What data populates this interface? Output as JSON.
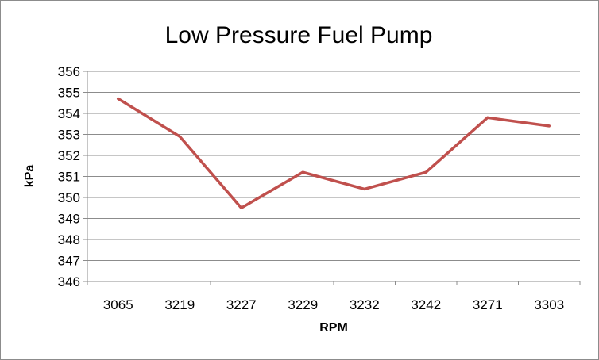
{
  "chart_data": {
    "type": "line",
    "title": "Low Pressure Fuel Pump",
    "xlabel": "RPM",
    "ylabel": "kPa",
    "categories": [
      "3065",
      "3219",
      "3227",
      "3229",
      "3232",
      "3242",
      "3271",
      "3303"
    ],
    "series": [
      {
        "values": [
          354.7,
          352.9,
          349.5,
          351.2,
          350.4,
          351.2,
          353.8,
          353.4
        ],
        "color": "#c0504d"
      }
    ],
    "ylim": [
      346,
      356
    ],
    "ytick_step": 1,
    "grid": true,
    "legend": "none"
  }
}
